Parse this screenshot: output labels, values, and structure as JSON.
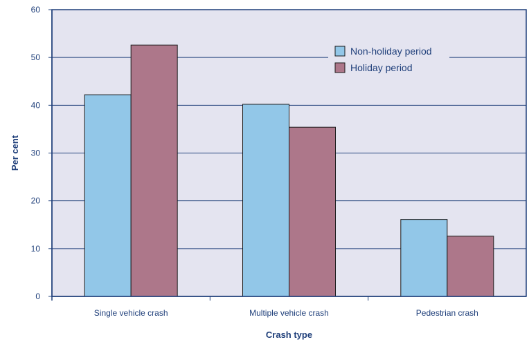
{
  "chart_data": {
    "type": "bar",
    "title": "",
    "xlabel": "Crash type",
    "ylabel": "Per cent",
    "categories": [
      "Single vehicle crash",
      "Multiple vehicle crash",
      "Pedestrian crash"
    ],
    "series": [
      {
        "name": "Non-holiday period",
        "values": [
          42.2,
          40.2,
          16.1
        ]
      },
      {
        "name": "Holiday period",
        "values": [
          52.6,
          35.4,
          12.6
        ]
      }
    ],
    "ylim": [
      0,
      60
    ],
    "yticks": [
      0,
      10,
      20,
      30,
      40,
      50,
      60
    ],
    "grid": true,
    "legend_position": "top-right"
  },
  "colors": {
    "plot_background": "#e4e4f0",
    "grid": "#1f3f7a",
    "axis": "#1f3f7a",
    "text": "#1f3f7a",
    "bar_outline": "#1a1a1a",
    "series": [
      "#92c7e8",
      "#ad778a"
    ]
  }
}
